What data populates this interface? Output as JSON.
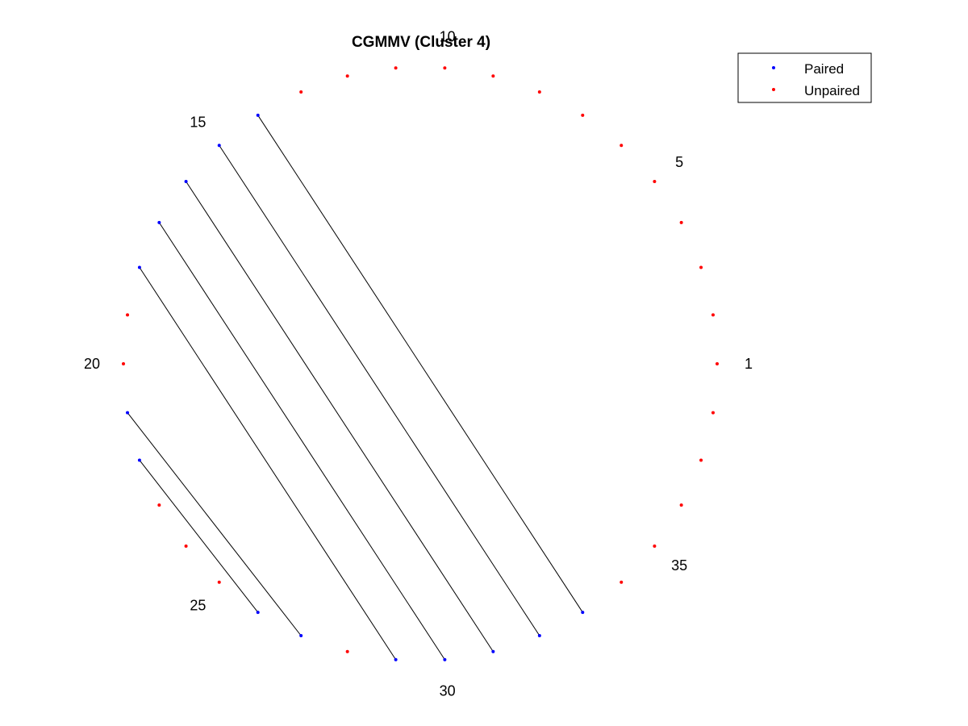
{
  "chart_data": {
    "type": "scatter",
    "title": "CGMMV (Cluster 4)",
    "n_points": 38,
    "layout": "circular arc diagram",
    "index_labels": [
      "1",
      "5",
      "10",
      "15",
      "20",
      "25",
      "30",
      "35"
    ],
    "paired_positions": [
      14,
      15,
      16,
      17,
      18,
      21,
      22,
      26,
      27,
      29,
      30,
      31,
      32,
      33
    ],
    "unpaired_positions": [
      1,
      2,
      3,
      4,
      5,
      6,
      7,
      8,
      9,
      10,
      11,
      12,
      13,
      19,
      20,
      23,
      24,
      25,
      28,
      34,
      35,
      36,
      37,
      38
    ],
    "pairs": [
      [
        14,
        33
      ],
      [
        15,
        32
      ],
      [
        16,
        31
      ],
      [
        17,
        30
      ],
      [
        18,
        29
      ],
      [
        21,
        27
      ],
      [
        22,
        26
      ]
    ],
    "legend": {
      "position": "top-right",
      "entries": [
        "Paired",
        "Unpaired"
      ]
    },
    "colors": {
      "paired": "#0000ff",
      "unpaired": "#ff0000",
      "line": "#000000"
    },
    "grid": false,
    "axes_visible": false
  }
}
